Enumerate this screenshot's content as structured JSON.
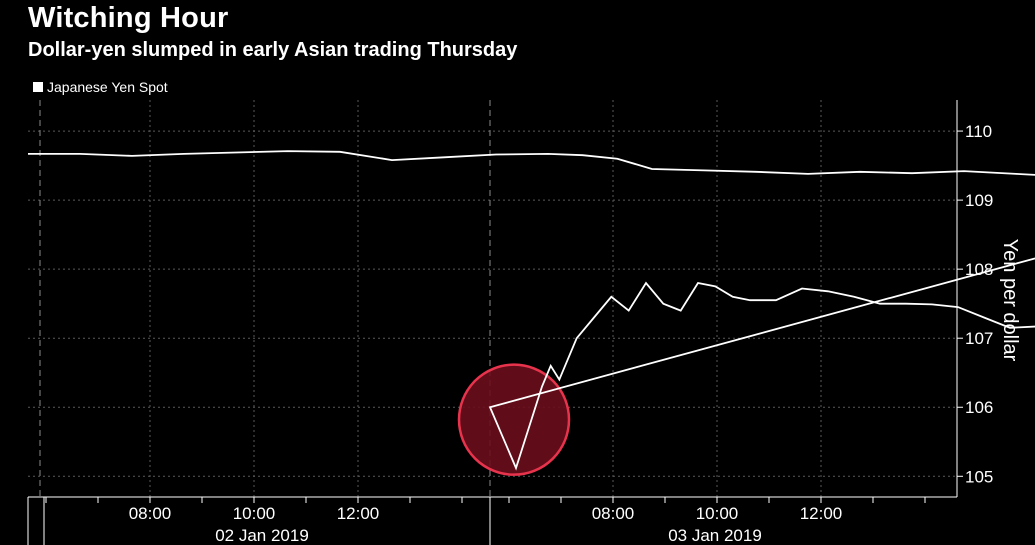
{
  "chart_data": {
    "type": "line",
    "title": "Witching Hour",
    "subtitle": "Dollar-yen slumped in early Asian trading Thursday",
    "legend": [
      "Japanese Yen Spot"
    ],
    "ylabel": "Yen per dollar",
    "ylim": [
      104.7,
      110.45
    ],
    "y_ticks": [
      "110",
      "109",
      "108",
      "107",
      "106",
      "105"
    ],
    "x_ticks": [
      "08:00",
      "10:00",
      "12:00",
      "08:00",
      "10:00",
      "12:00"
    ],
    "date_labels": [
      "02 Jan 2019",
      "03 Jan 2019"
    ],
    "grid": true,
    "colors": {
      "line": "#ffffff",
      "highlight_fill": "#6b0d1c",
      "highlight_stroke": "#e8334d"
    },
    "series": [
      {
        "name": "Japanese Yen Spot",
        "x": [
          "02 Jan 05:00",
          "02 Jan 05:30",
          "02 Jan 06:00",
          "02 Jan 06:30",
          "02 Jan 07:00",
          "02 Jan 07:30",
          "02 Jan 08:00",
          "02 Jan 08:30",
          "02 Jan 09:00",
          "02 Jan 09:30",
          "02 Jan 10:00",
          "02 Jan 10:20",
          "02 Jan 10:40",
          "02 Jan 11:00",
          "02 Jan 11:30",
          "02 Jan 12:00",
          "02 Jan 12:30",
          "02 Jan 13:00",
          "02 Jan 13:30",
          "02 Jan 14:00",
          "02 Jan 14:30",
          "02 Jan 15:00",
          "02 Jan 15:30",
          "02 Jan 16:00",
          "02 Jan 16:15",
          "03 Jan 05:00",
          "03 Jan 05:15",
          "03 Jan 05:30",
          "03 Jan 05:35",
          "03 Jan 05:40",
          "03 Jan 05:50",
          "03 Jan 06:00",
          "03 Jan 06:10",
          "03 Jan 06:20",
          "03 Jan 06:30",
          "03 Jan 06:40",
          "03 Jan 06:50",
          "03 Jan 07:00",
          "03 Jan 07:10",
          "03 Jan 07:20",
          "03 Jan 07:30",
          "03 Jan 07:45",
          "03 Jan 08:00",
          "03 Jan 08:15",
          "03 Jan 08:30",
          "03 Jan 08:45",
          "03 Jan 09:00",
          "03 Jan 09:15",
          "03 Jan 09:30",
          "03 Jan 09:45",
          "03 Jan 10:00",
          "03 Jan 10:15",
          "03 Jan 10:30",
          "03 Jan 10:45",
          "03 Jan 11:00",
          "03 Jan 11:15",
          "03 Jan 11:30",
          "03 Jan 11:45",
          "03 Jan 12:00",
          "03 Jan 12:15",
          "03 Jan 12:30",
          "03 Jan 12:45",
          "03 Jan 13:00",
          "03 Jan 13:15",
          "03 Jan 13:30",
          "03 Jan 13:45",
          "03 Jan 14:00",
          "03 Jan 14:15",
          "03 Jan 14:30",
          "03 Jan 14:45",
          "03 Jan 15:00",
          "03 Jan 15:15",
          "03 Jan 15:30",
          "03 Jan 15:45",
          "03 Jan 16:00"
        ],
        "values": [
          109.67,
          109.67,
          109.64,
          109.67,
          109.69,
          109.71,
          109.7,
          109.58,
          109.62,
          109.66,
          109.67,
          109.65,
          109.6,
          109.45,
          109.43,
          109.41,
          109.38,
          109.41,
          109.39,
          109.42,
          109.38,
          109.34,
          109.1,
          108.9,
          108.8,
          106.0,
          105.12,
          106.3,
          106.6,
          106.4,
          107.0,
          107.3,
          107.6,
          107.4,
          107.8,
          107.5,
          107.4,
          107.8,
          107.75,
          107.6,
          107.55,
          107.55,
          107.72,
          107.68,
          107.6,
          107.5,
          107.5,
          107.49,
          107.45,
          107.3,
          107.15,
          107.17,
          107.12,
          107.05,
          107.1,
          107.18,
          107.15,
          107.12,
          107.16,
          107.2,
          107.18,
          107.2,
          107.18,
          107.15,
          107.22,
          107.27,
          107.18,
          107.1,
          107.05,
          106.95,
          106.88,
          106.85,
          106.95,
          106.92,
          106.95
        ]
      }
    ]
  }
}
